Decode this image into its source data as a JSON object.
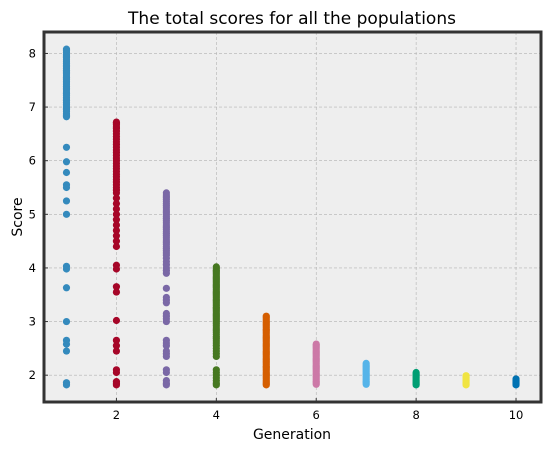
{
  "chart_data": {
    "type": "scatter",
    "title": "The total scores for all the populations",
    "xlabel": "Generation",
    "ylabel": "Score",
    "xlim": [
      0.55,
      10.5
    ],
    "ylim": [
      1.5,
      8.4
    ],
    "xticks": [
      2,
      4,
      6,
      8,
      10
    ],
    "yticks": [
      2,
      3,
      4,
      5,
      6,
      7,
      8
    ],
    "grid": true,
    "series": [
      {
        "generation": 1,
        "color": "#348ABD",
        "points": [
          8.08,
          8.05,
          8.02,
          7.98,
          7.95,
          7.92,
          7.88,
          7.85,
          7.82,
          7.78,
          7.75,
          7.72,
          7.68,
          7.65,
          7.62,
          7.58,
          7.55,
          7.52,
          7.48,
          7.45,
          7.42,
          7.38,
          7.35,
          7.32,
          7.28,
          7.25,
          7.22,
          7.18,
          7.15,
          7.12,
          7.08,
          7.05,
          7.02,
          6.98,
          6.95,
          6.92,
          6.88,
          6.85,
          6.82,
          6.25,
          5.98,
          5.78,
          5.55,
          5.5,
          5.25,
          5.0,
          4.03,
          3.98,
          3.63,
          3.0,
          2.65,
          2.58,
          2.45,
          1.86,
          1.82
        ]
      },
      {
        "generation": 2,
        "color": "#A60628",
        "points": [
          6.72,
          6.7,
          6.67,
          6.63,
          6.6,
          6.55,
          6.5,
          6.45,
          6.4,
          6.35,
          6.3,
          6.25,
          6.2,
          6.15,
          6.1,
          6.05,
          6.0,
          5.95,
          5.9,
          5.85,
          5.8,
          5.75,
          5.7,
          5.65,
          5.6,
          5.55,
          5.5,
          5.45,
          5.4,
          5.3,
          5.2,
          5.1,
          5.0,
          4.9,
          4.8,
          4.7,
          4.6,
          4.5,
          4.4,
          4.05,
          3.98,
          3.65,
          3.55,
          3.02,
          2.65,
          2.55,
          2.45,
          2.1,
          2.05,
          1.88,
          1.85,
          1.82
        ]
      },
      {
        "generation": 3,
        "color": "#7A68A6",
        "points": [
          5.4,
          5.36,
          5.32,
          5.28,
          5.24,
          5.2,
          5.16,
          5.12,
          5.08,
          5.04,
          5.0,
          4.96,
          4.92,
          4.88,
          4.84,
          4.8,
          4.76,
          4.72,
          4.68,
          4.64,
          4.6,
          4.56,
          4.52,
          4.48,
          4.44,
          4.4,
          4.36,
          4.32,
          4.28,
          4.24,
          4.18,
          4.12,
          4.06,
          4.0,
          3.95,
          3.9,
          3.62,
          3.45,
          3.4,
          3.35,
          3.15,
          3.1,
          3.05,
          3.0,
          2.65,
          2.6,
          2.55,
          2.45,
          2.4,
          2.35,
          2.1,
          2.05,
          1.9,
          1.85,
          1.82
        ]
      },
      {
        "generation": 4,
        "color": "#467821",
        "points": [
          4.02,
          3.99,
          3.96,
          3.93,
          3.9,
          3.87,
          3.84,
          3.81,
          3.78,
          3.75,
          3.72,
          3.69,
          3.66,
          3.63,
          3.6,
          3.57,
          3.54,
          3.51,
          3.48,
          3.45,
          3.42,
          3.39,
          3.36,
          3.33,
          3.3,
          3.27,
          3.24,
          3.21,
          3.18,
          3.15,
          3.12,
          3.09,
          3.06,
          3.03,
          3.0,
          2.96,
          2.92,
          2.88,
          2.84,
          2.8,
          2.76,
          2.72,
          2.68,
          2.64,
          2.6,
          2.55,
          2.5,
          2.45,
          2.4,
          2.35,
          2.1,
          2.05,
          2.0,
          1.95,
          1.9,
          1.85,
          1.82
        ]
      },
      {
        "generation": 5,
        "color": "#D55E00",
        "points": [
          3.1,
          3.07,
          3.04,
          3.01,
          2.98,
          2.95,
          2.92,
          2.89,
          2.86,
          2.83,
          2.8,
          2.77,
          2.74,
          2.71,
          2.68,
          2.65,
          2.62,
          2.59,
          2.56,
          2.53,
          2.5,
          2.47,
          2.44,
          2.41,
          2.38,
          2.35,
          2.32,
          2.29,
          2.26,
          2.23,
          2.2,
          2.17,
          2.14,
          2.11,
          2.08,
          2.05,
          2.02,
          1.99,
          1.96,
          1.93,
          1.9,
          1.87,
          1.84,
          1.82
        ]
      },
      {
        "generation": 6,
        "color": "#CC79A7",
        "points": [
          2.58,
          2.55,
          2.52,
          2.49,
          2.46,
          2.43,
          2.4,
          2.37,
          2.34,
          2.31,
          2.28,
          2.25,
          2.22,
          2.19,
          2.16,
          2.13,
          2.1,
          2.07,
          2.04,
          2.01,
          1.98,
          1.95,
          1.92,
          1.89,
          1.86,
          1.83
        ]
      },
      {
        "generation": 7,
        "color": "#56B4E9",
        "points": [
          2.22,
          2.19,
          2.16,
          2.13,
          2.1,
          2.07,
          2.04,
          2.01,
          1.98,
          1.95,
          1.92,
          1.89,
          1.86,
          1.83
        ]
      },
      {
        "generation": 8,
        "color": "#009E73",
        "points": [
          2.05,
          2.02,
          1.99,
          1.96,
          1.93,
          1.9,
          1.87,
          1.84,
          1.82
        ]
      },
      {
        "generation": 9,
        "color": "#F0E442",
        "points": [
          1.99,
          1.96,
          1.93,
          1.9,
          1.87,
          1.84,
          1.82
        ]
      },
      {
        "generation": 10,
        "color": "#0072B2",
        "points": [
          1.93,
          1.9,
          1.87,
          1.84,
          1.82
        ]
      }
    ]
  }
}
